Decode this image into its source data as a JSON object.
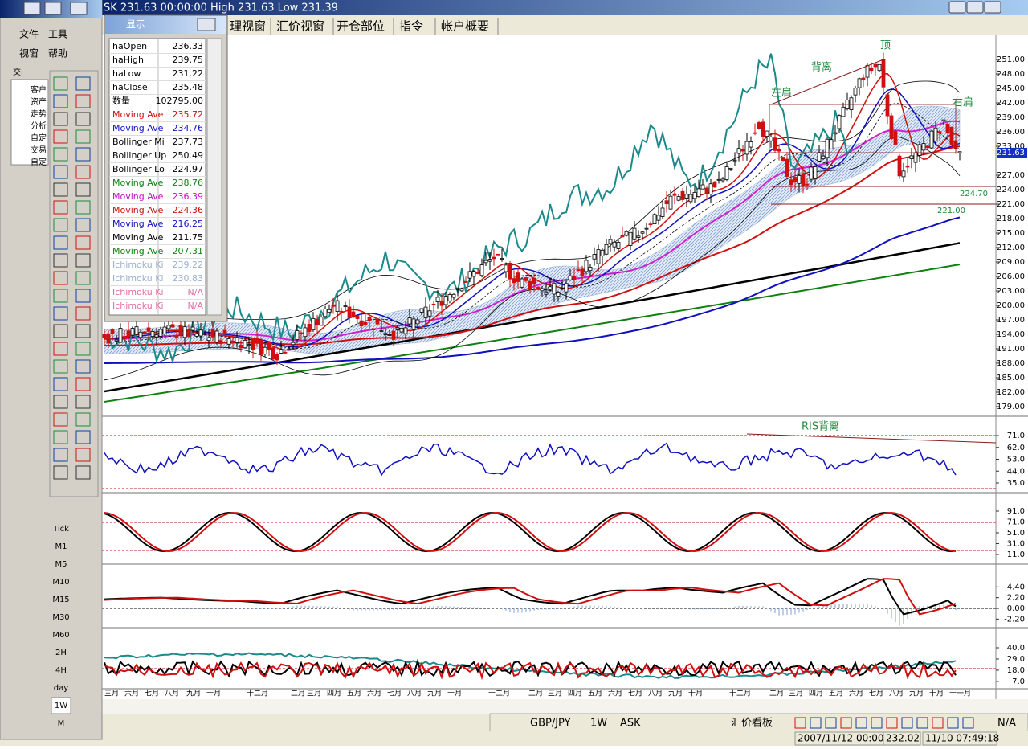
{
  "title_bar": "SK 231.63 00:00:00 High 231.63 Low 231.39",
  "tabs": [
    "理视窗",
    "汇价视窗",
    "开仓部位",
    "指令",
    "帐户概要"
  ],
  "left_panel": {
    "menu": [
      "文件",
      "工具",
      "视窗",
      "帮助"
    ],
    "tab": "交i",
    "tree": [
      "客户",
      "资产",
      "走势",
      "分析",
      "自定",
      "交易",
      "自定"
    ],
    "timeframes": [
      "Tick",
      "M1",
      "M5",
      "M10",
      "M15",
      "M30",
      "M60",
      "2H",
      "4H",
      "day",
      "1W",
      "M"
    ]
  },
  "data_window": {
    "title": "显示",
    "rows": [
      {
        "name": "haOpen",
        "value": "236.33",
        "color": "#000000"
      },
      {
        "name": "haHigh",
        "value": "239.75",
        "color": "#000000"
      },
      {
        "name": "haLow",
        "value": "231.22",
        "color": "#000000"
      },
      {
        "name": "haClose",
        "value": "235.48",
        "color": "#000000"
      },
      {
        "name": "数量",
        "value": "102795.00",
        "color": "#000000"
      },
      {
        "name": "Moving Ave",
        "value": "235.72",
        "color": "#d01010"
      },
      {
        "name": "Moving Ave",
        "value": "234.76",
        "color": "#1010c0"
      },
      {
        "name": "Bollinger Mi",
        "value": "237.73",
        "color": "#000000"
      },
      {
        "name": "Bollinger Up",
        "value": "250.49",
        "color": "#000000"
      },
      {
        "name": "Bollinger Lo",
        "value": "224.97",
        "color": "#000000"
      },
      {
        "name": "Moving Ave",
        "value": "238.76",
        "color": "#108010"
      },
      {
        "name": "Moving Ave",
        "value": "236.39",
        "color": "#c010c0"
      },
      {
        "name": "Moving Ave",
        "value": "224.36",
        "color": "#d01010"
      },
      {
        "name": "Moving Ave",
        "value": "216.25",
        "color": "#1010c0"
      },
      {
        "name": "Moving Ave",
        "value": "211.75",
        "color": "#000000"
      },
      {
        "name": "Moving Ave",
        "value": "207.31",
        "color": "#108010"
      },
      {
        "name": "Ichimoku Ki",
        "value": "239.22",
        "color": "#9ab0d0"
      },
      {
        "name": "Ichimoku Ki",
        "value": "230.83",
        "color": "#9ab0d0"
      },
      {
        "name": "Ichimoku Ki",
        "value": "N/A",
        "color": "#e070a0"
      },
      {
        "name": "Ichimoku Ki",
        "value": "N/A",
        "color": "#e070a0"
      }
    ]
  },
  "chart": {
    "price_ticks": [
      "251.00",
      "248.00",
      "245.00",
      "242.00",
      "239.00",
      "236.00",
      "233.00",
      "227.00",
      "224.00",
      "221.00",
      "218.00",
      "215.00",
      "212.00",
      "209.00",
      "206.00",
      "203.00",
      "200.00",
      "197.00",
      "194.00",
      "191.00",
      "188.00",
      "185.00",
      "182.00",
      "179.00"
    ],
    "current_price": "231.63",
    "annotations": [
      "背离",
      "顶",
      "左肩",
      "右肩",
      "224.70",
      "221.00",
      "RIS背离"
    ],
    "rsi_ticks": [
      "71.0",
      "62.0",
      "53.0",
      "44.0",
      "35.0"
    ],
    "stoch_ticks": [
      "91.0",
      "71.0",
      "51.0",
      "31.0",
      "11.0"
    ],
    "macd_ticks": [
      "4.40",
      "2.20",
      "0.00",
      "-2.20"
    ],
    "dmi_ticks": [
      "40.0",
      "29.0",
      "18.0",
      "7.0"
    ],
    "months": [
      "三月",
      "六月",
      "七月",
      "八月",
      "九月",
      "十月",
      "十二月",
      "二月",
      "三月",
      "四月",
      "五月",
      "六月",
      "七月",
      "八月",
      "九月",
      "十月",
      "十二月",
      "二月",
      "三月",
      "四月",
      "五月",
      "六月",
      "七月",
      "八月",
      "九月",
      "十月",
      "十二月",
      "二月",
      "三月",
      "四月",
      "五月",
      "六月",
      "七月",
      "八月",
      "九月",
      "十月",
      "十一月"
    ]
  },
  "toolbar": {
    "symbol": "GBP/JPY",
    "period": "1W",
    "side": "ASK",
    "board": "汇价看板",
    "na": "N/A"
  },
  "status": {
    "time": "2007/11/12 00:00",
    "price": "232.02",
    "clock": "11/10 07:49:18"
  }
}
